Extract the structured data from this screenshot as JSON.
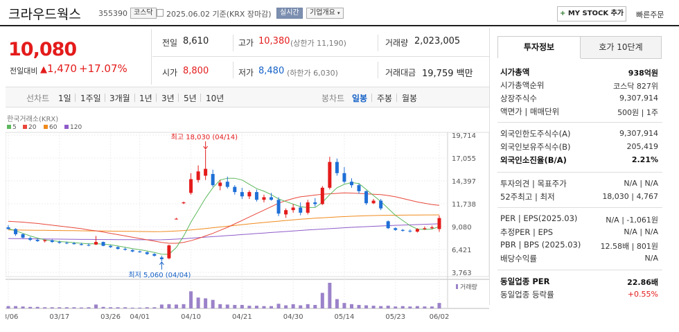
{
  "header": {
    "name": "크라우드웍스",
    "code": "355390",
    "market": "코스닥",
    "date": "2025.06.02",
    "basis": "기준(KRX 장마감)",
    "realtime": "실시간",
    "overview": "기업개요",
    "mystock_plus": "+",
    "mystock": "MY STOCK 추가",
    "quick_order": "빠른주문"
  },
  "price": {
    "current": "10,080",
    "change_label": "전일대비",
    "change_sign": "▲",
    "change": "1,470",
    "change_pct": "+17.07%"
  },
  "quote": {
    "prev_label": "전일",
    "prev": "8,610",
    "high_label": "고가",
    "high": "10,380",
    "upper_limit": "(상한가 11,190)",
    "volume_label": "거래량",
    "volume": "2,023,005",
    "open_label": "시가",
    "open": "8,800",
    "low_label": "저가",
    "low": "8,480",
    "lower_limit": "(하한가 6,030)",
    "amount_label": "거래대금",
    "amount": "19,759 백만"
  },
  "tabs": {
    "line_label": "선차트",
    "periods": [
      "1일",
      "1주일",
      "3개월",
      "1년",
      "3년",
      "5년",
      "10년"
    ],
    "candle_label": "봉차트",
    "candles": [
      "일봉",
      "주봉",
      "월봉"
    ],
    "active_candle": "일봉"
  },
  "colors": {
    "up": "#e41b1b",
    "down": "#1f6fd6",
    "ma5": "#5cb85c",
    "ma20": "#e8473a",
    "ma60": "#f08a1c",
    "ma120": "#8e5bc9",
    "volume": "#9b82c9"
  },
  "chart_data": {
    "type": "candlestick",
    "source": "한국거래소(KRX)",
    "ma_legend": [
      "5",
      "20",
      "60",
      "120"
    ],
    "volume_label": "거래량",
    "y_ticks": [
      "19,714",
      "17,055",
      "14,397",
      "11,738",
      "9,080",
      "6,421",
      "3,763"
    ],
    "ylim": [
      3763,
      19714
    ],
    "x_ticks": [
      {
        "label": "03/06",
        "i": 0
      },
      {
        "label": "03/17",
        "i": 7
      },
      {
        "label": "03/26",
        "i": 14
      },
      {
        "label": "04/01",
        "i": 18
      },
      {
        "label": "04/10",
        "i": 25
      },
      {
        "label": "04/21",
        "i": 32
      },
      {
        "label": "04/30",
        "i": 39
      },
      {
        "label": "05/14",
        "i": 46
      },
      {
        "label": "05/23",
        "i": 53
      },
      {
        "label": "06/02",
        "i": 59
      }
    ],
    "annotations": {
      "high": "최고 18,030 (04/14)",
      "high_value": 18030,
      "high_i": 27,
      "low": "최저 5,060 (04/04)",
      "low_value": 5060,
      "low_i": 21
    },
    "candles": [
      {
        "o": 9000,
        "h": 9250,
        "l": 8750,
        "c": 8800
      },
      {
        "o": 8800,
        "h": 8900,
        "l": 8000,
        "c": 8200
      },
      {
        "o": 8200,
        "h": 8300,
        "l": 7700,
        "c": 7800
      },
      {
        "o": 7750,
        "h": 7900,
        "l": 7400,
        "c": 7550
      },
      {
        "o": 7550,
        "h": 7700,
        "l": 7300,
        "c": 7400
      },
      {
        "o": 7400,
        "h": 7600,
        "l": 7250,
        "c": 7500
      },
      {
        "o": 7500,
        "h": 7600,
        "l": 7200,
        "c": 7300
      },
      {
        "o": 7300,
        "h": 7450,
        "l": 7100,
        "c": 7200
      },
      {
        "o": 7200,
        "h": 7350,
        "l": 7050,
        "c": 7150
      },
      {
        "o": 7150,
        "h": 7300,
        "l": 7000,
        "c": 7050
      },
      {
        "o": 7050,
        "h": 7200,
        "l": 6900,
        "c": 6950
      },
      {
        "o": 6950,
        "h": 7150,
        "l": 6800,
        "c": 6900
      },
      {
        "o": 7000,
        "h": 8000,
        "l": 6950,
        "c": 7300
      },
      {
        "o": 7300,
        "h": 7350,
        "l": 6800,
        "c": 6850
      },
      {
        "o": 6850,
        "h": 6950,
        "l": 6600,
        "c": 6700
      },
      {
        "o": 6700,
        "h": 6800,
        "l": 6400,
        "c": 6500
      },
      {
        "o": 6500,
        "h": 6650,
        "l": 6300,
        "c": 6400
      },
      {
        "o": 6350,
        "h": 6450,
        "l": 6100,
        "c": 6200
      },
      {
        "o": 6200,
        "h": 6300,
        "l": 6050,
        "c": 6100
      },
      {
        "o": 6100,
        "h": 6200,
        "l": 5800,
        "c": 5900
      },
      {
        "o": 5900,
        "h": 6000,
        "l": 5600,
        "c": 5700
      },
      {
        "o": 5500,
        "h": 5700,
        "l": 5060,
        "c": 5300
      },
      {
        "o": 5400,
        "h": 7000,
        "l": 5300,
        "c": 6900
      },
      {
        "o": 10000,
        "h": 10100,
        "l": 9900,
        "c": 10000
      },
      {
        "o": 11800,
        "h": 12000,
        "l": 11700,
        "c": 11900
      },
      {
        "o": 13000,
        "h": 15300,
        "l": 12800,
        "c": 14600
      },
      {
        "o": 14500,
        "h": 16200,
        "l": 14200,
        "c": 15500
      },
      {
        "o": 15000,
        "h": 18030,
        "l": 14500,
        "c": 15800
      },
      {
        "o": 15200,
        "h": 15700,
        "l": 13700,
        "c": 13900
      },
      {
        "o": 13800,
        "h": 14500,
        "l": 13300,
        "c": 14200
      },
      {
        "o": 14300,
        "h": 14900,
        "l": 13500,
        "c": 13700
      },
      {
        "o": 13700,
        "h": 13900,
        "l": 12800,
        "c": 13100
      },
      {
        "o": 13100,
        "h": 13600,
        "l": 12300,
        "c": 12600
      },
      {
        "o": 12600,
        "h": 13300,
        "l": 12300,
        "c": 13100
      },
      {
        "o": 13100,
        "h": 13400,
        "l": 12000,
        "c": 12200
      },
      {
        "o": 12200,
        "h": 12800,
        "l": 11900,
        "c": 12500
      },
      {
        "o": 12500,
        "h": 13000,
        "l": 12100,
        "c": 12200
      },
      {
        "o": 12200,
        "h": 12500,
        "l": 10300,
        "c": 10600
      },
      {
        "o": 10500,
        "h": 11200,
        "l": 10100,
        "c": 11000
      },
      {
        "o": 11000,
        "h": 11700,
        "l": 10700,
        "c": 11300
      },
      {
        "o": 11300,
        "h": 11900,
        "l": 10400,
        "c": 10700
      },
      {
        "o": 10700,
        "h": 12200,
        "l": 10500,
        "c": 11900
      },
      {
        "o": 11900,
        "h": 12400,
        "l": 11400,
        "c": 11700
      },
      {
        "o": 11700,
        "h": 13800,
        "l": 11600,
        "c": 13600
      },
      {
        "o": 13600,
        "h": 17200,
        "l": 13400,
        "c": 16600
      },
      {
        "o": 16600,
        "h": 17000,
        "l": 15000,
        "c": 15300
      },
      {
        "o": 15300,
        "h": 16000,
        "l": 14100,
        "c": 14300
      },
      {
        "o": 14300,
        "h": 14700,
        "l": 13600,
        "c": 13900
      },
      {
        "o": 13900,
        "h": 14100,
        "l": 12900,
        "c": 13200
      },
      {
        "o": 13200,
        "h": 13300,
        "l": 11600,
        "c": 11800
      },
      {
        "o": 11800,
        "h": 12300,
        "l": 11700,
        "c": 12100
      },
      {
        "o": 12100,
        "h": 12300,
        "l": 11000,
        "c": 11200
      },
      {
        "o": 9700,
        "h": 9800,
        "l": 8800,
        "c": 8900
      },
      {
        "o": 8900,
        "h": 9000,
        "l": 8600,
        "c": 8700
      },
      {
        "o": 8700,
        "h": 8800,
        "l": 8500,
        "c": 8600
      },
      {
        "o": 8600,
        "h": 8750,
        "l": 8400,
        "c": 8550
      },
      {
        "o": 8500,
        "h": 8900,
        "l": 8400,
        "c": 8800
      },
      {
        "o": 8800,
        "h": 9100,
        "l": 8700,
        "c": 8900
      },
      {
        "o": 8900,
        "h": 9200,
        "l": 8800,
        "c": 9000
      },
      {
        "o": 8800,
        "h": 10380,
        "l": 8480,
        "c": 10080
      }
    ],
    "volumes": [
      0.3,
      0.3,
      0.25,
      0.2,
      0.2,
      0.15,
      0.15,
      0.15,
      0.15,
      0.15,
      0.12,
      0.15,
      0.5,
      0.2,
      0.15,
      0.15,
      0.15,
      0.1,
      0.1,
      0.15,
      0.15,
      0.5,
      0.55,
      0.5,
      0.55,
      2.2,
      1.4,
      1.3,
      1.1,
      0.55,
      0.5,
      0.45,
      0.45,
      0.35,
      0.35,
      0.3,
      0.3,
      0.6,
      0.4,
      0.55,
      0.4,
      0.55,
      0.45,
      2.0,
      3.3,
      1.2,
      0.7,
      0.55,
      0.45,
      0.4,
      0.35,
      0.3,
      0.35,
      0.25,
      0.3,
      0.25,
      0.3,
      0.25,
      0.25,
      0.7
    ],
    "ma": {
      "ma5": [
        8850,
        8600,
        8300,
        8000,
        7750,
        7550,
        7450,
        7350,
        7300,
        7220,
        7150,
        7080,
        7100,
        7050,
        6980,
        6830,
        6680,
        6520,
        6400,
        6250,
        6080,
        5880,
        5860,
        6660,
        7980,
        9600,
        11000,
        12400,
        13600,
        14500,
        14700,
        14700,
        14500,
        14000,
        13500,
        13200,
        12800,
        12300,
        12000,
        11700,
        11400,
        11300,
        11300,
        11900,
        12800,
        13600,
        14000,
        14200,
        14100,
        13400,
        12700,
        12000,
        11200,
        10400,
        9800,
        9200,
        8800,
        8750,
        8800,
        9080
      ],
      "ma20": [
        9700,
        9650,
        9600,
        9520,
        9450,
        9350,
        9250,
        9150,
        9050,
        8950,
        8850,
        8700,
        8600,
        8450,
        8300,
        8150,
        8000,
        7850,
        7700,
        7550,
        7400,
        7250,
        7150,
        7150,
        7250,
        7450,
        7700,
        8000,
        8300,
        8650,
        9000,
        9400,
        9800,
        10200,
        10600,
        11000,
        11400,
        11800,
        12100,
        12350,
        12550,
        12650,
        12750,
        12850,
        12900,
        12950,
        13000,
        12980,
        12950,
        12900,
        12850,
        12800,
        12700,
        12550,
        12350,
        12150,
        11950,
        11800,
        11650,
        11550
      ],
      "ma60": [
        8700,
        8690,
        8680,
        8670,
        8660,
        8650,
        8640,
        8630,
        8620,
        8610,
        8600,
        8590,
        8580,
        8570,
        8560,
        8550,
        8540,
        8530,
        8520,
        8510,
        8500,
        8510,
        8540,
        8580,
        8630,
        8700,
        8780,
        8860,
        8950,
        9040,
        9130,
        9220,
        9310,
        9400,
        9480,
        9560,
        9640,
        9720,
        9800,
        9870,
        9940,
        10000,
        10060,
        10110,
        10160,
        10210,
        10250,
        10290,
        10320,
        10350,
        10370,
        10390,
        10400,
        10410,
        10420,
        10430,
        10430,
        10440,
        10440,
        10450
      ],
      "ma120": [
        7700,
        7690,
        7680,
        7670,
        7660,
        7650,
        7640,
        7630,
        7620,
        7610,
        7600,
        7595,
        7590,
        7585,
        7580,
        7575,
        7570,
        7565,
        7560,
        7555,
        7550,
        7560,
        7590,
        7630,
        7680,
        7740,
        7800,
        7860,
        7920,
        7980,
        8040,
        8100,
        8160,
        8220,
        8280,
        8340,
        8400,
        8460,
        8520,
        8580,
        8640,
        8700,
        8750,
        8800,
        8850,
        8900,
        8950,
        9000,
        9040,
        9080,
        9120,
        9160,
        9200,
        9230,
        9260,
        9290,
        9320,
        9350,
        9380,
        9410
      ]
    }
  },
  "right": {
    "tab1": "투자정보",
    "tab2": "호가 10단계",
    "rows": [
      {
        "label": "시가총액",
        "value": "938억원",
        "bold": true
      },
      {
        "label": "시가총액순위",
        "value": "코스닥 827위"
      },
      {
        "label": "상장주식수",
        "value": "9,307,914"
      },
      {
        "label": "액면가 | 매매단위",
        "value": "500원 | 1주"
      },
      {
        "label": "외국인한도주식수(A)",
        "value": "9,307,914"
      },
      {
        "label": "외국인보유주식수(B)",
        "value": "205,419"
      },
      {
        "label": "외국인소진율(B/A)",
        "value": "2.21%",
        "bold": true
      },
      {
        "label": "투자의견 | 목표주가",
        "value": "N/A | N/A"
      },
      {
        "label": "52주최고 | 최저",
        "value": "18,030 | 4,767"
      },
      {
        "label": "PER | EPS(2025.03)",
        "value": "N/A | -1,061원"
      },
      {
        "label": "추정PER | EPS",
        "value": "N/A | N/A"
      },
      {
        "label": "PBR | BPS (2025.03)",
        "value": "12.58배 | 801원"
      },
      {
        "label": "배당수익률",
        "value": "N/A"
      },
      {
        "label": "동일업종 PER",
        "value": "22.86배",
        "bold": true
      },
      {
        "label": "동일업종 등락률",
        "value": "+0.55%",
        "red": true
      }
    ]
  }
}
